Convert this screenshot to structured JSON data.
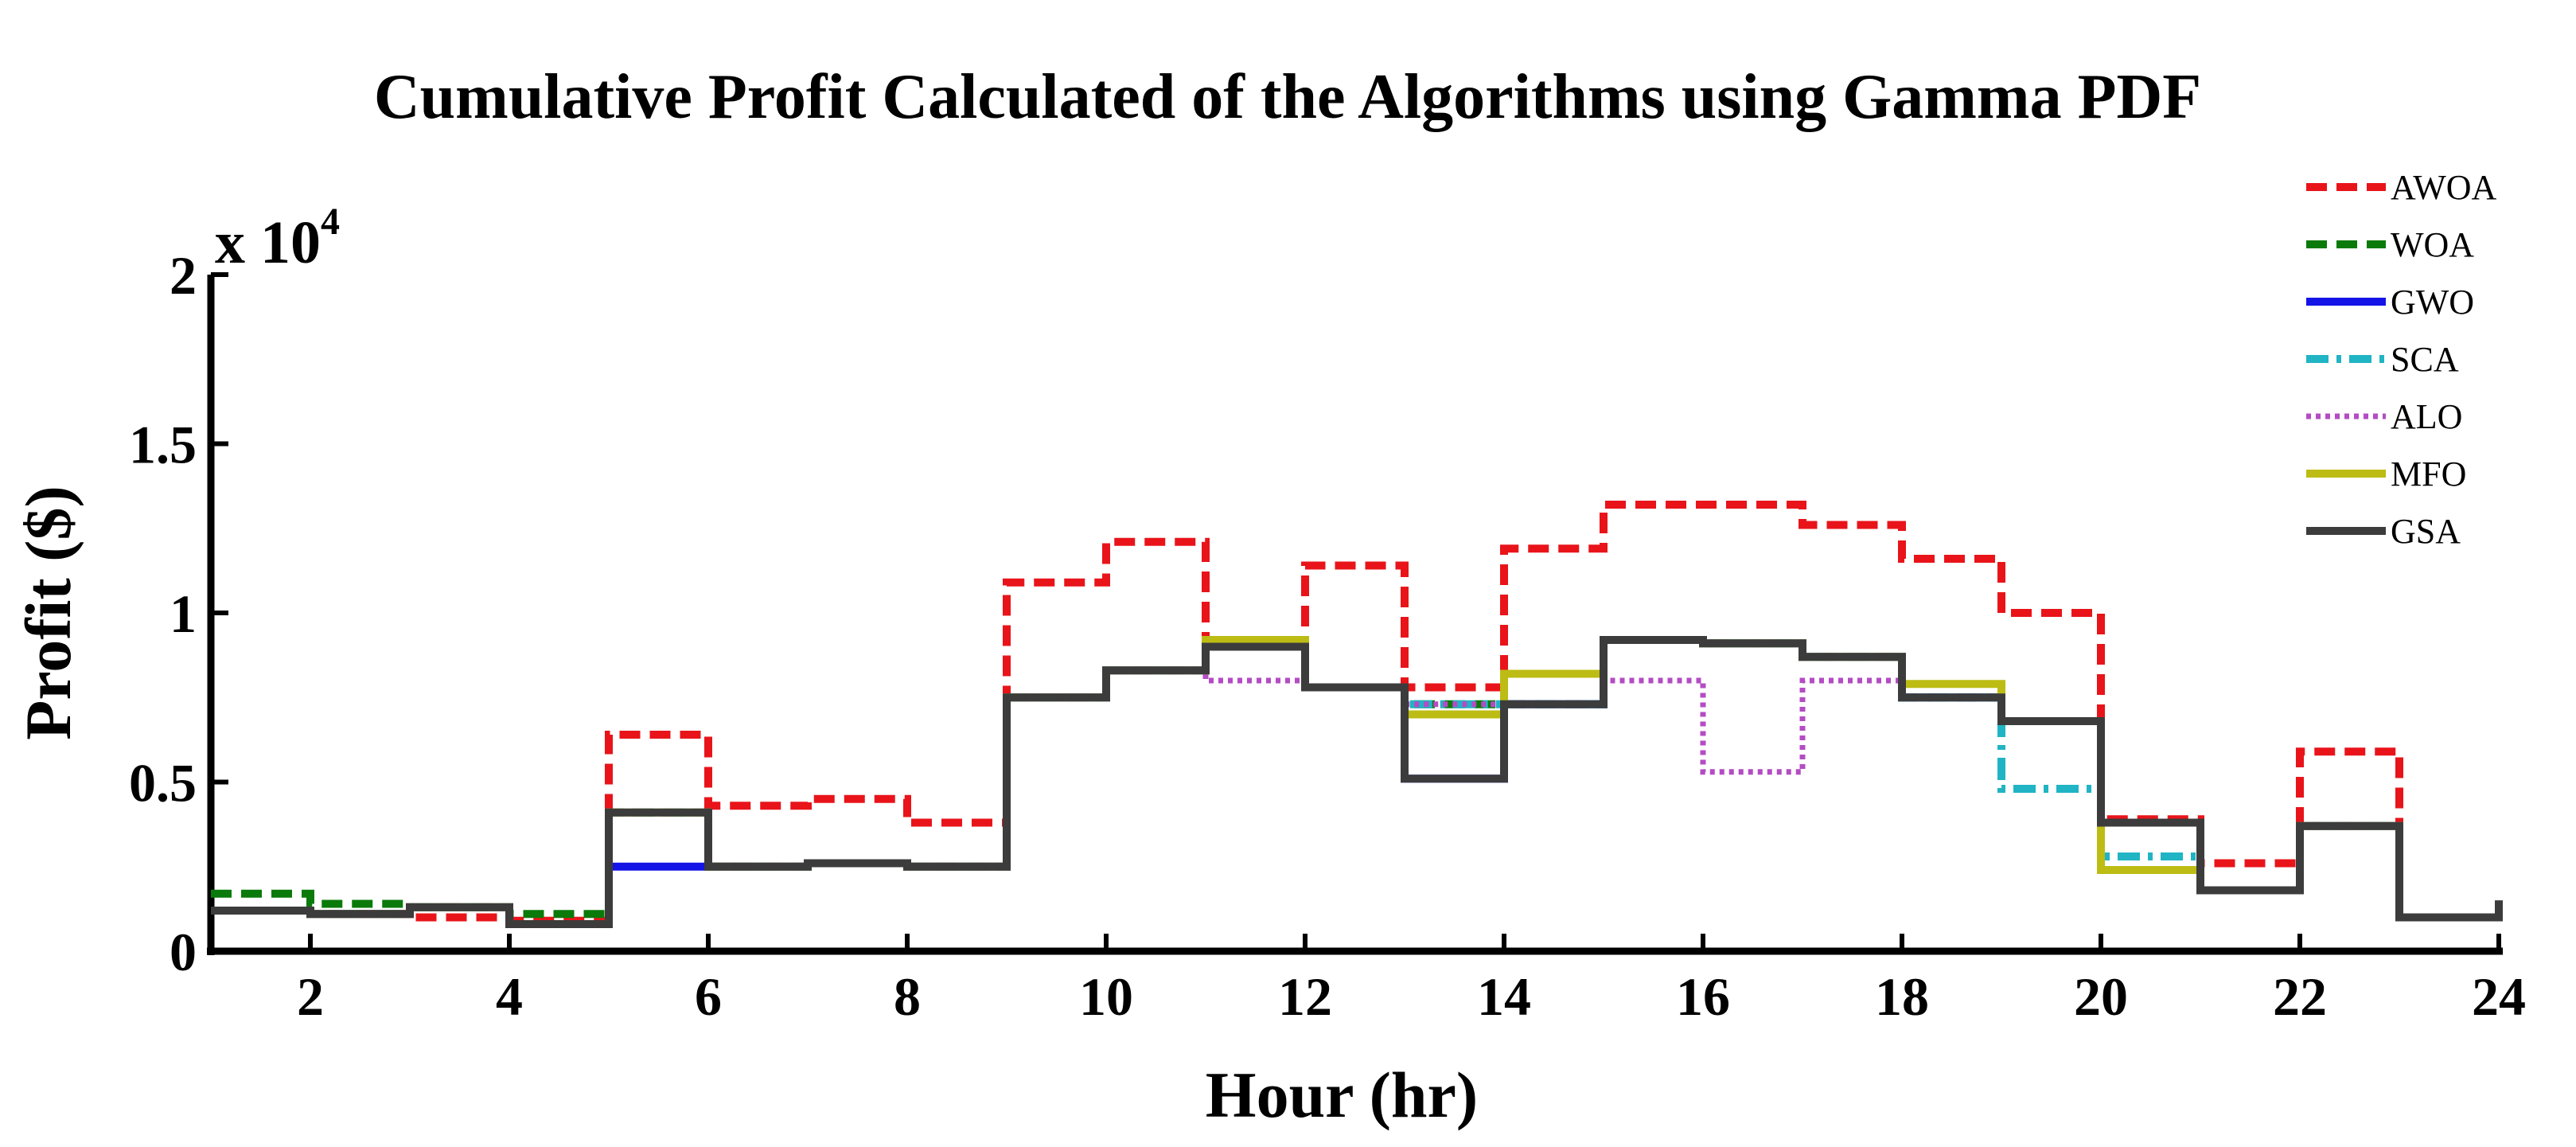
{
  "chart_data": {
    "type": "line",
    "step": "post",
    "title": "Cumulative Profit Calculated of the Algorithms using Gamma PDF",
    "xlabel": "Hour (hr)",
    "ylabel": "Profit ($)",
    "y_multiplier": {
      "base": "x 10",
      "exponent": "4"
    },
    "xlim": [
      1,
      24
    ],
    "ylim": [
      0,
      20000
    ],
    "x_ticks": [
      2,
      4,
      6,
      8,
      10,
      12,
      14,
      16,
      18,
      20,
      22,
      24
    ],
    "x_tick_labels": [
      "2",
      "4",
      "6",
      "8",
      "10",
      "12",
      "14",
      "16",
      "18",
      "20",
      "22",
      "24"
    ],
    "y_ticks": [
      0,
      5000,
      10000,
      15000,
      20000
    ],
    "y_tick_labels": [
      "0",
      "0.5",
      "1",
      "1.5",
      "2"
    ],
    "grid": false,
    "legend_position": "top-right",
    "x": [
      1,
      2,
      3,
      4,
      5,
      6,
      7,
      8,
      9,
      10,
      11,
      12,
      13,
      14,
      15,
      16,
      17,
      18,
      19,
      20,
      21,
      22,
      23,
      24
    ],
    "series": [
      {
        "name": "AWOA",
        "color": "#e8141a",
        "style": "dashed",
        "values": [
          1200,
          1100,
          1000,
          900,
          6400,
          4300,
          4500,
          3800,
          10900,
          12100,
          9200,
          11400,
          7800,
          11900,
          13200,
          13200,
          12600,
          11600,
          10000,
          3900,
          2600,
          5900,
          1000,
          1500
        ]
      },
      {
        "name": "WOA",
        "color": "#0a7a0a",
        "style": "dashed",
        "values": [
          1700,
          1400,
          1300,
          1100,
          4100,
          2500,
          2600,
          2500,
          7500,
          8300,
          9000,
          7800,
          7300,
          7300,
          9200,
          9100,
          8700,
          7500,
          6800,
          3800,
          1800,
          3700,
          1000,
          1500
        ]
      },
      {
        "name": "GWO",
        "color": "#1414e6",
        "style": "solid",
        "values": [
          1200,
          1100,
          1300,
          800,
          2500,
          2500,
          2600,
          2500,
          7500,
          8300,
          9000,
          7800,
          5100,
          7300,
          9200,
          9100,
          8700,
          7500,
          6800,
          3800,
          1800,
          3700,
          1000,
          1500
        ]
      },
      {
        "name": "SCA",
        "color": "#20b4c4",
        "style": "dashdot",
        "values": [
          1200,
          1100,
          1300,
          800,
          4100,
          2500,
          2600,
          2500,
          7500,
          8300,
          9000,
          7800,
          7300,
          7300,
          9200,
          9100,
          8700,
          7500,
          4800,
          2800,
          1800,
          3700,
          1000,
          1500
        ]
      },
      {
        "name": "ALO",
        "color": "#b44cc4",
        "style": "dotted",
        "values": [
          1200,
          1100,
          1300,
          800,
          4100,
          2500,
          2600,
          2500,
          7500,
          8300,
          8000,
          7800,
          7300,
          7300,
          8000,
          5300,
          8000,
          7500,
          6800,
          3800,
          1800,
          3700,
          1000,
          1500
        ]
      },
      {
        "name": "MFO",
        "color": "#bcbc14",
        "style": "solid",
        "values": [
          1200,
          1100,
          1300,
          800,
          4100,
          2500,
          2600,
          2500,
          7500,
          8300,
          9200,
          7800,
          7000,
          8200,
          9200,
          9100,
          8700,
          7900,
          6800,
          2400,
          1800,
          3700,
          1000,
          1500
        ]
      },
      {
        "name": "GSA",
        "color": "#3c3c3c",
        "style": "solid",
        "values": [
          1200,
          1100,
          1300,
          800,
          4100,
          2500,
          2600,
          2500,
          7500,
          8300,
          9000,
          7800,
          5100,
          7300,
          9200,
          9100,
          8700,
          7500,
          6800,
          3800,
          1800,
          3700,
          1000,
          1500
        ]
      }
    ]
  }
}
